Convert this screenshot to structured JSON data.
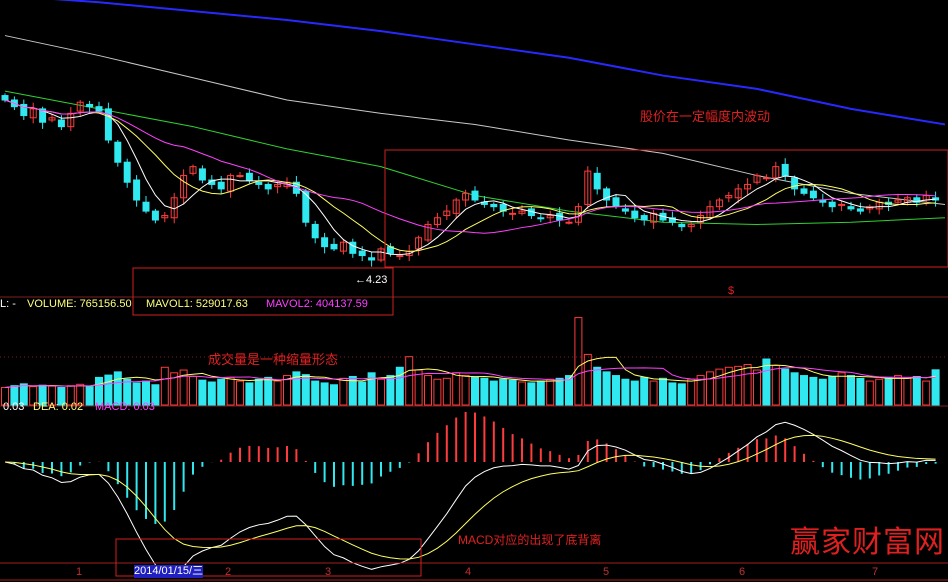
{
  "colors": {
    "up": "#ff3c3c",
    "down": "#30e8f0",
    "ma_white": "#ffffff",
    "ma_yellow": "#ffff60",
    "ma_magenta": "#ff40ff",
    "ma_green": "#30d030",
    "ma_gray": "#c8c8c8",
    "ma_blue": "#2828ff",
    "annotation": "#e02020"
  },
  "chart_data": {
    "type": "candlestick",
    "closes": [
      5.0,
      4.97,
      4.93,
      4.96,
      4.9,
      4.92,
      4.88,
      4.94,
      4.99,
      4.97,
      4.95,
      4.82,
      4.72,
      4.63,
      4.55,
      4.5,
      4.46,
      4.48,
      4.56,
      4.66,
      4.7,
      4.64,
      4.62,
      4.6,
      4.66,
      4.66,
      4.64,
      4.62,
      4.6,
      4.62,
      4.63,
      4.58,
      4.45,
      4.38,
      4.34,
      4.33,
      4.36,
      4.31,
      4.3,
      4.28,
      4.33,
      4.31,
      4.3,
      4.32,
      4.38,
      4.44,
      4.47,
      4.5,
      4.55,
      4.58,
      4.55,
      4.53,
      4.52,
      4.5,
      4.49,
      4.5,
      4.48,
      4.47,
      4.48,
      4.46,
      4.45,
      4.52,
      4.68,
      4.6,
      4.55,
      4.52,
      4.5,
      4.47,
      4.46,
      4.49,
      4.46,
      4.45,
      4.43,
      4.44,
      4.48,
      4.52,
      4.55,
      4.57,
      4.6,
      4.62,
      4.66,
      4.65,
      4.7,
      4.66,
      4.6,
      4.58,
      4.56,
      4.54,
      4.52,
      4.53,
      4.51,
      4.5,
      4.52,
      4.54,
      4.53,
      4.55,
      4.56,
      4.54,
      4.57,
      4.55
    ],
    "volumes": [
      380000,
      420000,
      460000,
      400000,
      430000,
      410000,
      380000,
      420000,
      450000,
      400000,
      600000,
      650000,
      720000,
      560000,
      480000,
      520000,
      440000,
      820000,
      700000,
      760000,
      620000,
      540000,
      500000,
      560000,
      600000,
      520000,
      480000,
      560000,
      600000,
      520000,
      640000,
      720000,
      660000,
      520000,
      480000,
      440000,
      580000,
      620000,
      500000,
      700000,
      560000,
      640000,
      820000,
      1050000,
      760000,
      640000,
      560000,
      580000,
      700000,
      640000,
      600000,
      580000,
      520000,
      560000,
      540000,
      500000,
      480000,
      520000,
      560000,
      580000,
      640000,
      1900000,
      1100000,
      820000,
      720000,
      640000,
      560000,
      520000,
      600000,
      520000,
      580000,
      480000,
      460000,
      560000,
      640000,
      720000,
      780000,
      820000,
      840000,
      880000,
      760000,
      1000000,
      860000,
      780000,
      700000,
      640000,
      600000,
      560000,
      620000,
      700000,
      640000,
      580000,
      520000,
      560000,
      600000,
      640000,
      580000,
      620000,
      520000,
      765156.5
    ],
    "long_ma_series_every_10_bars": [
      {
        "color": "#2828ff",
        "values": [
          5.47,
          5.44,
          5.4,
          5.36,
          5.31,
          5.25,
          5.19,
          5.11,
          5.05,
          4.96,
          4.89
        ]
      },
      {
        "color": "#c8c8c8",
        "values": [
          5.29,
          5.2,
          5.1,
          5.0,
          4.94,
          4.89,
          4.82,
          4.76,
          4.66,
          4.58,
          4.53
        ]
      },
      {
        "color": "#30d030",
        "values": [
          5.04,
          4.96,
          4.88,
          4.78,
          4.7,
          4.57,
          4.5,
          4.45,
          4.44,
          4.45,
          4.47
        ]
      }
    ],
    "low_marker": "4.23",
    "x_tick_labels": [
      "1",
      "2",
      "3",
      "4",
      "5",
      "6",
      "7"
    ],
    "grid": false
  },
  "volume_header": {
    "prefix": "L: -",
    "volume": "VOLUME: 765156.50",
    "mavol1": "MAVOL1: 529017.63",
    "mavol2": "MAVOL2: 404137.59"
  },
  "macd_header": {
    "dif": "0.03",
    "dea": "DEA: 0.02",
    "macd": "MACD: 0.03"
  },
  "annotations": {
    "price": "股价在一定幅度内波动",
    "volume": "成交量是一种缩量形态",
    "macd": "MACD对应的出现了底背离",
    "low": "←4.23",
    "dollar": "$"
  },
  "cursor_date": "2014/01/15/三",
  "watermark": "赢家财富网"
}
